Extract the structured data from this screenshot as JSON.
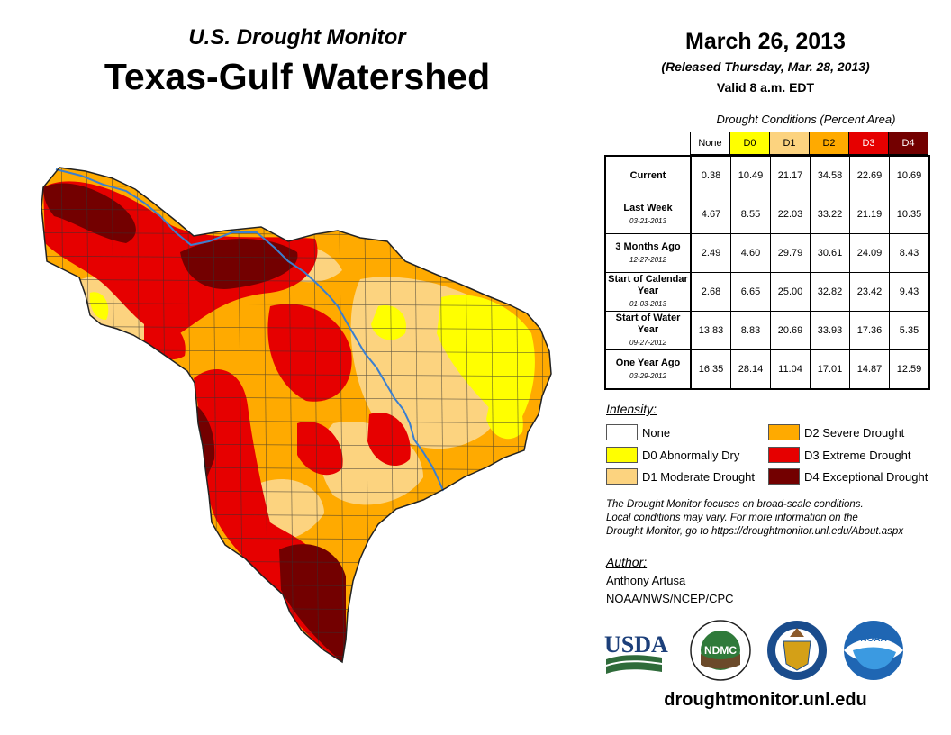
{
  "header": {
    "subtitle": "U.S. Drought Monitor",
    "title": "Texas-Gulf Watershed",
    "date": "March 26, 2013",
    "released": "(Released Thursday, Mar. 28, 2013)",
    "valid": "Valid 8 a.m. EDT"
  },
  "table": {
    "caption": "Drought Conditions (Percent Area)",
    "columns": [
      "None",
      "D0",
      "D1",
      "D2",
      "D3",
      "D4"
    ],
    "column_colors": [
      "#ffffff",
      "#ffff00",
      "#fcd37f",
      "#ffaa00",
      "#e60000",
      "#730000"
    ],
    "rows": [
      {
        "label": "Current",
        "date": "",
        "values": [
          "0.38",
          "10.49",
          "21.17",
          "34.58",
          "22.69",
          "10.69"
        ]
      },
      {
        "label": "Last Week",
        "date": "03-21-2013",
        "values": [
          "4.67",
          "8.55",
          "22.03",
          "33.22",
          "21.19",
          "10.35"
        ]
      },
      {
        "label": "3 Months Ago",
        "date": "12-27-2012",
        "values": [
          "2.49",
          "4.60",
          "29.79",
          "30.61",
          "24.09",
          "8.43"
        ]
      },
      {
        "label": "Start of Calendar Year",
        "date": "01-03-2013",
        "values": [
          "2.68",
          "6.65",
          "25.00",
          "32.82",
          "23.42",
          "9.43"
        ]
      },
      {
        "label": "Start of Water Year",
        "date": "09-27-2012",
        "values": [
          "13.83",
          "8.83",
          "20.69",
          "33.93",
          "17.36",
          "5.35"
        ]
      },
      {
        "label": "One Year Ago",
        "date": "03-29-2012",
        "values": [
          "16.35",
          "28.14",
          "11.04",
          "17.01",
          "14.87",
          "12.59"
        ]
      }
    ]
  },
  "legend": {
    "title": "Intensity:",
    "items": [
      {
        "label": "None",
        "color": "#ffffff"
      },
      {
        "label": "D0 Abnormally Dry",
        "color": "#ffff00"
      },
      {
        "label": "D1 Moderate Drought",
        "color": "#fcd37f"
      },
      {
        "label": "D2 Severe Drought",
        "color": "#ffaa00"
      },
      {
        "label": "D3 Extreme Drought",
        "color": "#e60000"
      },
      {
        "label": "D4 Exceptional Drought",
        "color": "#730000"
      }
    ]
  },
  "note": {
    "line1": "The Drought Monitor focuses on broad-scale conditions.",
    "line2": "Local conditions may vary. For more information on the",
    "line3": "Drought Monitor, go to https://droughtmonitor.unl.edu/About.aspx"
  },
  "author": {
    "title": "Author:",
    "name": "Anthony Artusa",
    "org": "NOAA/NWS/NCEP/CPC"
  },
  "logos": {
    "usda": "USDA",
    "ndmc": "NDMC",
    "noaa": "NOAA"
  },
  "footer": {
    "url": "droughtmonitor.unl.edu"
  }
}
